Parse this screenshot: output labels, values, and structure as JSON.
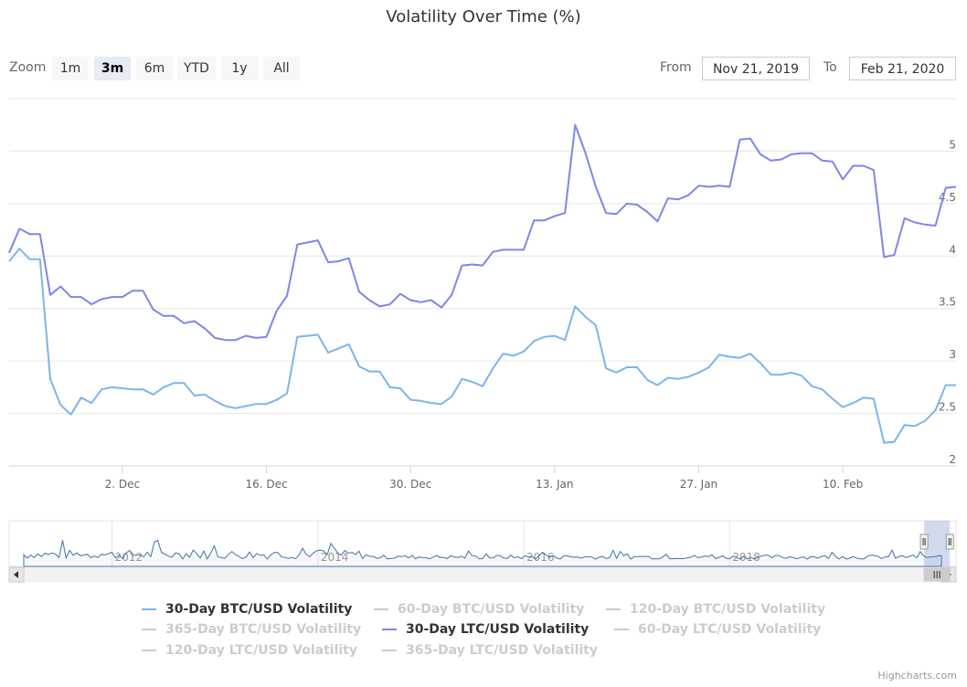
{
  "chart_data": {
    "type": "line",
    "title": "Volatility Over Time (%)",
    "x_range": [
      "2019-11-21",
      "2020-02-21"
    ],
    "ylim": [
      2,
      5.5
    ],
    "y_ticks": [
      "2",
      "2.5",
      "3",
      "3.5",
      "4",
      "4.5",
      "5"
    ],
    "x_ticks": [
      {
        "date": "2019-12-02",
        "label": "2. Dec"
      },
      {
        "date": "2019-12-16",
        "label": "16. Dec"
      },
      {
        "date": "2019-12-30",
        "label": "30. Dec"
      },
      {
        "date": "2020-01-13",
        "label": "13. Jan"
      },
      {
        "date": "2020-01-27",
        "label": "27. Jan"
      },
      {
        "date": "2020-02-10",
        "label": "10. Feb"
      }
    ],
    "grid": true,
    "legend_position": "bottom",
    "series": [
      {
        "name": "30-Day BTC/USD Volatility",
        "color": "#7cb5ec",
        "visible": true,
        "points": [
          [
            "2019-11-21",
            3.95
          ],
          [
            "2019-11-22",
            4.07
          ],
          [
            "2019-11-23",
            3.97
          ],
          [
            "2019-11-24",
            3.97
          ],
          [
            "2019-11-25",
            2.83
          ],
          [
            "2019-11-26",
            2.58
          ],
          [
            "2019-11-27",
            2.49
          ],
          [
            "2019-11-28",
            2.65
          ],
          [
            "2019-11-29",
            2.6
          ],
          [
            "2019-11-30",
            2.73
          ],
          [
            "2019-12-01",
            2.75
          ],
          [
            "2019-12-02",
            2.74
          ],
          [
            "2019-12-03",
            2.73
          ],
          [
            "2019-12-04",
            2.73
          ],
          [
            "2019-12-05",
            2.68
          ],
          [
            "2019-12-06",
            2.75
          ],
          [
            "2019-12-07",
            2.79
          ],
          [
            "2019-12-08",
            2.79
          ],
          [
            "2019-12-09",
            2.67
          ],
          [
            "2019-12-10",
            2.68
          ],
          [
            "2019-12-11",
            2.62
          ],
          [
            "2019-12-12",
            2.57
          ],
          [
            "2019-12-13",
            2.55
          ],
          [
            "2019-12-14",
            2.57
          ],
          [
            "2019-12-15",
            2.59
          ],
          [
            "2019-12-16",
            2.59
          ],
          [
            "2019-12-17",
            2.63
          ],
          [
            "2019-12-18",
            2.69
          ],
          [
            "2019-12-19",
            3.23
          ],
          [
            "2019-12-20",
            3.24
          ],
          [
            "2019-12-21",
            3.25
          ],
          [
            "2019-12-22",
            3.08
          ],
          [
            "2019-12-23",
            3.12
          ],
          [
            "2019-12-24",
            3.16
          ],
          [
            "2019-12-25",
            2.95
          ],
          [
            "2019-12-26",
            2.9
          ],
          [
            "2019-12-27",
            2.9
          ],
          [
            "2019-12-28",
            2.75
          ],
          [
            "2019-12-29",
            2.74
          ],
          [
            "2019-12-30",
            2.63
          ],
          [
            "2019-12-31",
            2.62
          ],
          [
            "2020-01-01",
            2.6
          ],
          [
            "2020-01-02",
            2.59
          ],
          [
            "2020-01-03",
            2.66
          ],
          [
            "2020-01-04",
            2.83
          ],
          [
            "2020-01-05",
            2.8
          ],
          [
            "2020-01-06",
            2.76
          ],
          [
            "2020-01-07",
            2.93
          ],
          [
            "2020-01-08",
            3.07
          ],
          [
            "2020-01-09",
            3.05
          ],
          [
            "2020-01-10",
            3.09
          ],
          [
            "2020-01-11",
            3.19
          ],
          [
            "2020-01-12",
            3.23
          ],
          [
            "2020-01-13",
            3.24
          ],
          [
            "2020-01-14",
            3.2
          ],
          [
            "2020-01-15",
            3.52
          ],
          [
            "2020-01-16",
            3.42
          ],
          [
            "2020-01-17",
            3.34
          ],
          [
            "2020-01-18",
            2.93
          ],
          [
            "2020-01-19",
            2.89
          ],
          [
            "2020-01-20",
            2.94
          ],
          [
            "2020-01-21",
            2.94
          ],
          [
            "2020-01-22",
            2.82
          ],
          [
            "2020-01-23",
            2.77
          ],
          [
            "2020-01-24",
            2.84
          ],
          [
            "2020-01-25",
            2.83
          ],
          [
            "2020-01-26",
            2.85
          ],
          [
            "2020-01-27",
            2.89
          ],
          [
            "2020-01-28",
            2.94
          ],
          [
            "2020-01-29",
            3.06
          ],
          [
            "2020-01-30",
            3.04
          ],
          [
            "2020-01-31",
            3.03
          ],
          [
            "2020-02-01",
            3.07
          ],
          [
            "2020-02-02",
            2.98
          ],
          [
            "2020-02-03",
            2.87
          ],
          [
            "2020-02-04",
            2.87
          ],
          [
            "2020-02-05",
            2.89
          ],
          [
            "2020-02-06",
            2.86
          ],
          [
            "2020-02-07",
            2.76
          ],
          [
            "2020-02-08",
            2.73
          ],
          [
            "2020-02-09",
            2.64
          ],
          [
            "2020-02-10",
            2.56
          ],
          [
            "2020-02-11",
            2.6
          ],
          [
            "2020-02-12",
            2.65
          ],
          [
            "2020-02-13",
            2.64
          ],
          [
            "2020-02-14",
            2.22
          ],
          [
            "2020-02-15",
            2.23
          ],
          [
            "2020-02-16",
            2.39
          ],
          [
            "2020-02-17",
            2.38
          ],
          [
            "2020-02-18",
            2.43
          ],
          [
            "2020-02-19",
            2.53
          ],
          [
            "2020-02-20",
            2.77
          ],
          [
            "2020-02-21",
            2.77
          ]
        ]
      },
      {
        "name": "60-Day BTC/USD Volatility",
        "color": "#cccccc",
        "visible": false,
        "points": []
      },
      {
        "name": "120-Day BTC/USD Volatility",
        "color": "#cccccc",
        "visible": false,
        "points": []
      },
      {
        "name": "365-Day BTC/USD Volatility",
        "color": "#cccccc",
        "visible": false,
        "points": []
      },
      {
        "name": "30-Day LTC/USD Volatility",
        "color": "#8085e9",
        "visible": true,
        "points": [
          [
            "2019-11-21",
            4.03
          ],
          [
            "2019-11-22",
            4.26
          ],
          [
            "2019-11-23",
            4.21
          ],
          [
            "2019-11-24",
            4.21
          ],
          [
            "2019-11-25",
            3.63
          ],
          [
            "2019-11-26",
            3.71
          ],
          [
            "2019-11-27",
            3.61
          ],
          [
            "2019-11-28",
            3.61
          ],
          [
            "2019-11-29",
            3.54
          ],
          [
            "2019-11-30",
            3.59
          ],
          [
            "2019-12-01",
            3.61
          ],
          [
            "2019-12-02",
            3.61
          ],
          [
            "2019-12-03",
            3.67
          ],
          [
            "2019-12-04",
            3.67
          ],
          [
            "2019-12-05",
            3.49
          ],
          [
            "2019-12-06",
            3.43
          ],
          [
            "2019-12-07",
            3.43
          ],
          [
            "2019-12-08",
            3.36
          ],
          [
            "2019-12-09",
            3.38
          ],
          [
            "2019-12-10",
            3.31
          ],
          [
            "2019-12-11",
            3.22
          ],
          [
            "2019-12-12",
            3.2
          ],
          [
            "2019-12-13",
            3.2
          ],
          [
            "2019-12-14",
            3.24
          ],
          [
            "2019-12-15",
            3.22
          ],
          [
            "2019-12-16",
            3.23
          ],
          [
            "2019-12-17",
            3.48
          ],
          [
            "2019-12-18",
            3.62
          ],
          [
            "2019-12-19",
            4.11
          ],
          [
            "2019-12-20",
            4.13
          ],
          [
            "2019-12-21",
            4.15
          ],
          [
            "2019-12-22",
            3.94
          ],
          [
            "2019-12-23",
            3.95
          ],
          [
            "2019-12-24",
            3.98
          ],
          [
            "2019-12-25",
            3.66
          ],
          [
            "2019-12-26",
            3.58
          ],
          [
            "2019-12-27",
            3.52
          ],
          [
            "2019-12-28",
            3.54
          ],
          [
            "2019-12-29",
            3.64
          ],
          [
            "2019-12-30",
            3.58
          ],
          [
            "2019-12-31",
            3.56
          ],
          [
            "2020-01-01",
            3.58
          ],
          [
            "2020-01-02",
            3.51
          ],
          [
            "2020-01-03",
            3.63
          ],
          [
            "2020-01-04",
            3.91
          ],
          [
            "2020-01-05",
            3.92
          ],
          [
            "2020-01-06",
            3.91
          ],
          [
            "2020-01-07",
            4.04
          ],
          [
            "2020-01-08",
            4.06
          ],
          [
            "2020-01-09",
            4.06
          ],
          [
            "2020-01-10",
            4.06
          ],
          [
            "2020-01-11",
            4.34
          ],
          [
            "2020-01-12",
            4.34
          ],
          [
            "2020-01-13",
            4.38
          ],
          [
            "2020-01-14",
            4.41
          ],
          [
            "2020-01-15",
            5.25
          ],
          [
            "2020-01-16",
            4.98
          ],
          [
            "2020-01-17",
            4.66
          ],
          [
            "2020-01-18",
            4.41
          ],
          [
            "2020-01-19",
            4.4
          ],
          [
            "2020-01-20",
            4.5
          ],
          [
            "2020-01-21",
            4.49
          ],
          [
            "2020-01-22",
            4.42
          ],
          [
            "2020-01-23",
            4.33
          ],
          [
            "2020-01-24",
            4.55
          ],
          [
            "2020-01-25",
            4.54
          ],
          [
            "2020-01-26",
            4.58
          ],
          [
            "2020-01-27",
            4.67
          ],
          [
            "2020-01-28",
            4.66
          ],
          [
            "2020-01-29",
            4.67
          ],
          [
            "2020-01-30",
            4.66
          ],
          [
            "2020-01-31",
            5.11
          ],
          [
            "2020-02-01",
            5.12
          ],
          [
            "2020-02-02",
            4.97
          ],
          [
            "2020-02-03",
            4.91
          ],
          [
            "2020-02-04",
            4.92
          ],
          [
            "2020-02-05",
            4.97
          ],
          [
            "2020-02-06",
            4.98
          ],
          [
            "2020-02-07",
            4.98
          ],
          [
            "2020-02-08",
            4.91
          ],
          [
            "2020-02-09",
            4.9
          ],
          [
            "2020-02-10",
            4.73
          ],
          [
            "2020-02-11",
            4.86
          ],
          [
            "2020-02-12",
            4.86
          ],
          [
            "2020-02-13",
            4.82
          ],
          [
            "2020-02-14",
            3.99
          ],
          [
            "2020-02-15",
            4.01
          ],
          [
            "2020-02-16",
            4.36
          ],
          [
            "2020-02-17",
            4.32
          ],
          [
            "2020-02-18",
            4.3
          ],
          [
            "2020-02-19",
            4.29
          ],
          [
            "2020-02-20",
            4.65
          ],
          [
            "2020-02-21",
            4.66
          ]
        ]
      },
      {
        "name": "60-Day LTC/USD Volatility",
        "color": "#cccccc",
        "visible": false,
        "points": []
      },
      {
        "name": "120-Day LTC/USD Volatility",
        "color": "#cccccc",
        "visible": false,
        "points": []
      },
      {
        "name": "365-Day LTC/USD Volatility",
        "color": "#cccccc",
        "visible": false,
        "points": []
      }
    ],
    "navigator": {
      "year_labels": [
        {
          "year": 2012,
          "label": "2012"
        },
        {
          "year": 2014,
          "label": "2014"
        },
        {
          "year": 2016,
          "label": "2016"
        },
        {
          "year": 2018,
          "label": "2018"
        }
      ],
      "year_range": [
        2011.0,
        2020.2
      ],
      "selected_range": [
        2019.89,
        2020.14
      ]
    }
  },
  "range_selector": {
    "zoom_label": "Zoom",
    "buttons": [
      {
        "label": "1m",
        "active": false
      },
      {
        "label": "3m",
        "active": true
      },
      {
        "label": "6m",
        "active": false
      },
      {
        "label": "YTD",
        "active": false
      },
      {
        "label": "1y",
        "active": false
      },
      {
        "label": "All",
        "active": false
      }
    ],
    "from_label": "From",
    "from_value": "Nov 21, 2019",
    "to_label": "To",
    "to_value": "Feb 21, 2020"
  },
  "credits": "Highcharts.com",
  "colors": {
    "btc": "#7cb5ec",
    "ltc": "#8085e9",
    "hidden": "#cccccc",
    "grid": "#e6e6e6",
    "navigator_mask": "rgba(102,133,194,0.3)"
  }
}
